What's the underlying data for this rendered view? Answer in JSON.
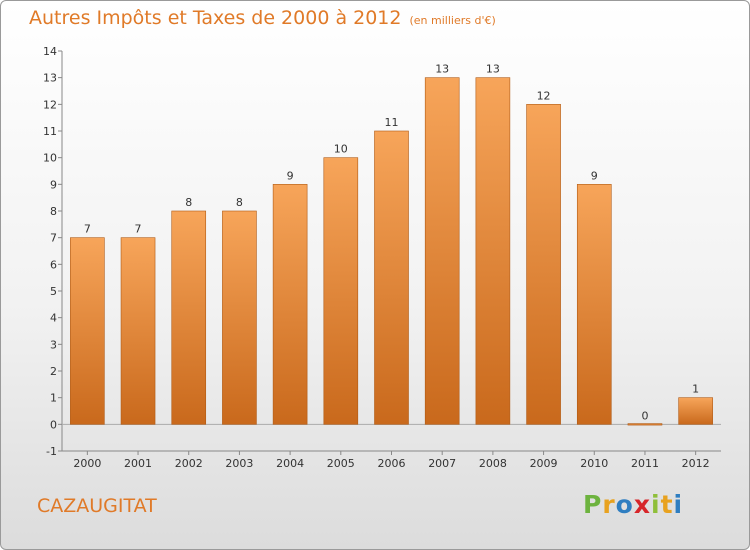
{
  "title": "Autres Impôts et Taxes de 2000 à 2012",
  "subtitle": "(en milliers d'€)",
  "commune": "CAZAUGITAT",
  "brand": {
    "letters": [
      "P",
      "r",
      "o",
      "x",
      "i",
      "t",
      "i"
    ],
    "colors": [
      "#6db33f",
      "#e8a21f",
      "#2f7ec1",
      "#d7262a",
      "#8fbf3a",
      "#e8a21f",
      "#2f7ec1"
    ]
  },
  "colors": {
    "accent": "#e07a28",
    "bar_top": "#f7a55a",
    "bar_bottom": "#c9691c",
    "bar_edge": "#b05a14"
  },
  "chart_data": {
    "type": "bar",
    "title": "Autres Impôts et Taxes de 2000 à 2012",
    "subtitle": "(en milliers d'€)",
    "categories": [
      "2000",
      "2001",
      "2002",
      "2003",
      "2004",
      "2005",
      "2006",
      "2007",
      "2008",
      "2009",
      "2010",
      "2011",
      "2012"
    ],
    "values": [
      7,
      7,
      8,
      8,
      9,
      10,
      11,
      13,
      13,
      12,
      9,
      0,
      1
    ],
    "ylim": [
      -1,
      14
    ],
    "yticks": [
      -1,
      0,
      1,
      2,
      3,
      4,
      5,
      6,
      7,
      8,
      9,
      10,
      11,
      12,
      13,
      14
    ],
    "grid": false,
    "legend": "none"
  }
}
